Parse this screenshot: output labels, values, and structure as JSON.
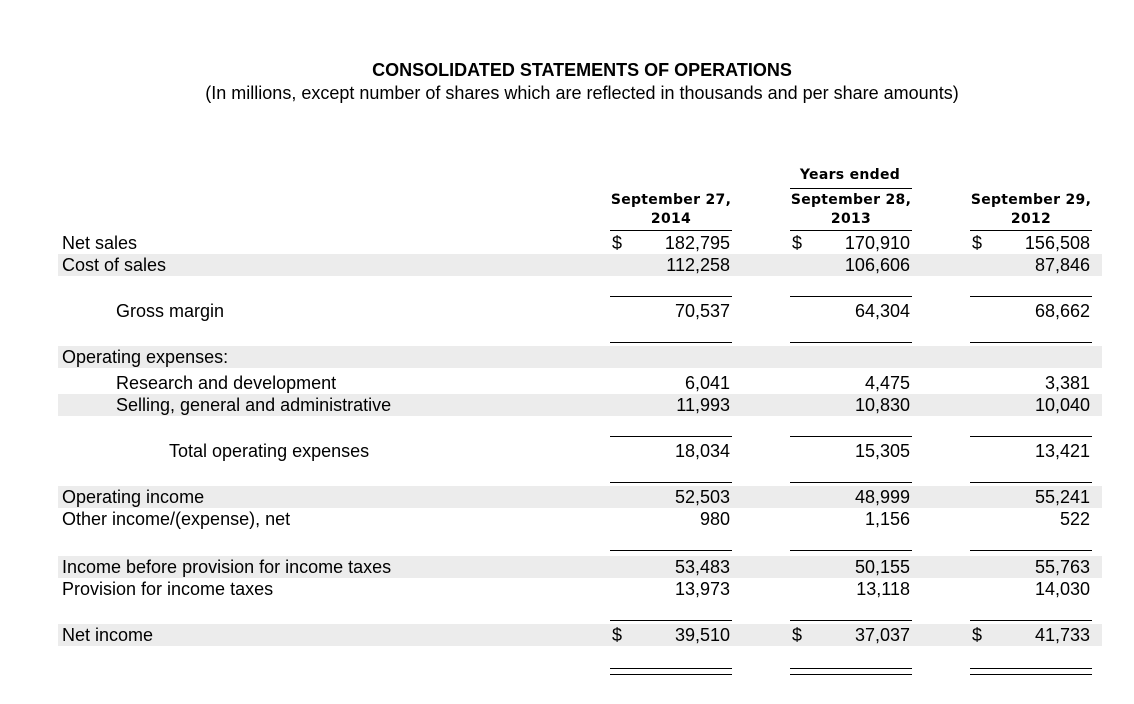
{
  "header": {
    "title": "CONSOLIDATED STATEMENTS OF OPERATIONS",
    "subtitle": "(In millions, except number of shares which are reflected in thousands and per share amounts)",
    "years_ended": "Years ended"
  },
  "columns": [
    {
      "line1": "September 27,",
      "line2": "2014"
    },
    {
      "line1": "September 28,",
      "line2": "2013"
    },
    {
      "line1": "September 29,",
      "line2": "2012"
    }
  ],
  "currency_symbol": "$",
  "rows": {
    "net_sales": {
      "label": "Net sales",
      "values": [
        "182,795",
        "170,910",
        "156,508"
      ]
    },
    "cost_of_sales": {
      "label": "Cost of sales",
      "values": [
        "112,258",
        "106,606",
        "87,846"
      ]
    },
    "gross_margin": {
      "label": "Gross margin",
      "values": [
        "70,537",
        "64,304",
        "68,662"
      ]
    },
    "operating_expenses_header": {
      "label": "Operating expenses:"
    },
    "research_and_development": {
      "label": "Research and development",
      "values": [
        "6,041",
        "4,475",
        "3,381"
      ]
    },
    "sga": {
      "label": "Selling, general and administrative",
      "values": [
        "11,993",
        "10,830",
        "10,040"
      ]
    },
    "total_operating_expenses": {
      "label": "Total operating expenses",
      "values": [
        "18,034",
        "15,305",
        "13,421"
      ]
    },
    "operating_income": {
      "label": "Operating income",
      "values": [
        "52,503",
        "48,999",
        "55,241"
      ]
    },
    "other_income": {
      "label": "Other income/(expense), net",
      "values": [
        "980",
        "1,156",
        "522"
      ]
    },
    "income_before_taxes": {
      "label": "Income before provision for income taxes",
      "values": [
        "53,483",
        "50,155",
        "55,763"
      ]
    },
    "provision_for_taxes": {
      "label": "Provision for income taxes",
      "values": [
        "13,973",
        "13,118",
        "14,030"
      ]
    },
    "net_income": {
      "label": "Net income",
      "values": [
        "39,510",
        "37,037",
        "41,733"
      ]
    }
  }
}
